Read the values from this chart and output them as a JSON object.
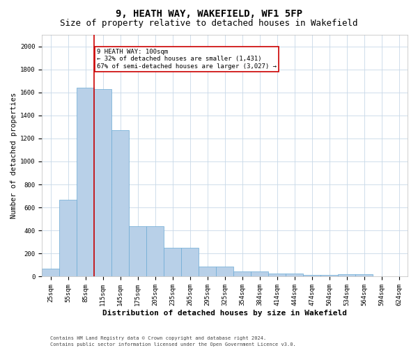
{
  "title1": "9, HEATH WAY, WAKEFIELD, WF1 5FP",
  "title2": "Size of property relative to detached houses in Wakefield",
  "xlabel": "Distribution of detached houses by size in Wakefield",
  "ylabel": "Number of detached properties",
  "categories": [
    "25sqm",
    "55sqm",
    "85sqm",
    "115sqm",
    "145sqm",
    "175sqm",
    "205sqm",
    "235sqm",
    "265sqm",
    "295sqm",
    "325sqm",
    "354sqm",
    "384sqm",
    "414sqm",
    "444sqm",
    "474sqm",
    "504sqm",
    "534sqm",
    "564sqm",
    "594sqm",
    "624sqm"
  ],
  "values": [
    70,
    670,
    1640,
    1630,
    1270,
    440,
    440,
    250,
    250,
    85,
    85,
    45,
    45,
    25,
    25,
    15,
    15,
    20,
    20,
    5,
    5
  ],
  "bar_color": "#b8d0e8",
  "bar_edge_color": "#6aaad4",
  "property_line_x": 2.5,
  "property_line_color": "#cc0000",
  "annotation_text": "9 HEATH WAY: 100sqm\n← 32% of detached houses are smaller (1,431)\n67% of semi-detached houses are larger (3,027) →",
  "annotation_box_color": "#cc0000",
  "ylim": [
    0,
    2100
  ],
  "yticks": [
    0,
    200,
    400,
    600,
    800,
    1000,
    1200,
    1400,
    1600,
    1800,
    2000
  ],
  "footer1": "Contains HM Land Registry data © Crown copyright and database right 2024.",
  "footer2": "Contains public sector information licensed under the Open Government Licence v3.0.",
  "bg_color": "#ffffff",
  "grid_color": "#c8d8e8",
  "title1_fontsize": 10,
  "title2_fontsize": 9,
  "xlabel_fontsize": 8,
  "ylabel_fontsize": 7.5,
  "tick_fontsize": 6.5,
  "footer_fontsize": 5.0
}
